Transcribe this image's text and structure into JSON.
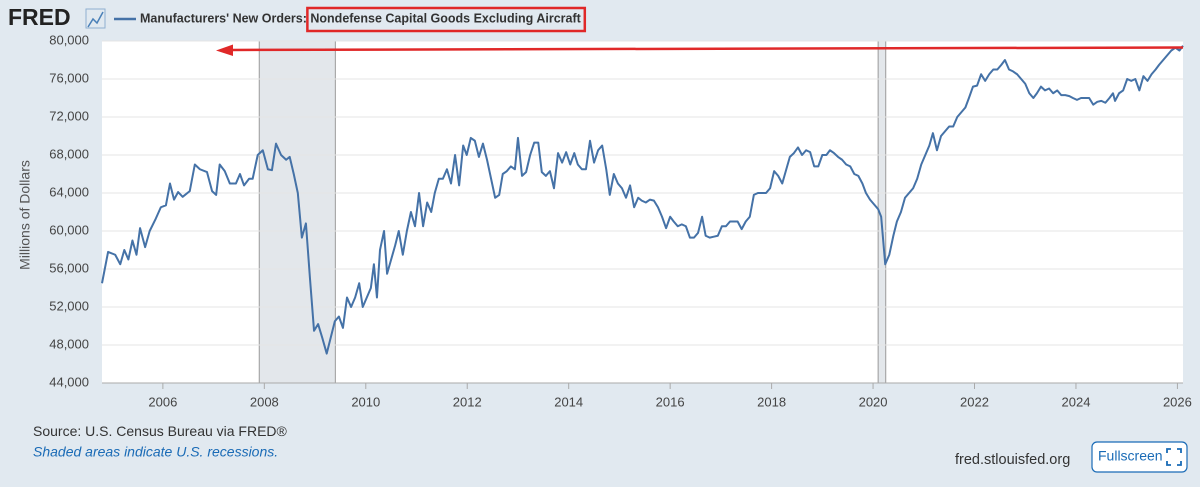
{
  "logo": "FRED",
  "chart_data": {
    "type": "line",
    "ylabel": "Millions of Dollars",
    "xlim": [
      2004.8,
      2026.11
    ],
    "ylim": [
      44000,
      80000
    ],
    "xticks": [
      2006,
      2008,
      2010,
      2012,
      2014,
      2016,
      2018,
      2020,
      2022,
      2024,
      2026
    ],
    "yticks": [
      {
        "value": 44000,
        "label": "44,000"
      },
      {
        "value": 48000,
        "label": "48,000"
      },
      {
        "value": 52000,
        "label": "52,000"
      },
      {
        "value": 56000,
        "label": "56,000"
      },
      {
        "value": 60000,
        "label": "60,000"
      },
      {
        "value": 64000,
        "label": "64,000"
      },
      {
        "value": 68000,
        "label": "68,000"
      },
      {
        "value": 72000,
        "label": "72,000"
      },
      {
        "value": 76000,
        "label": "76,000"
      },
      {
        "value": 80000,
        "label": "80,000"
      }
    ],
    "grid": true,
    "recessions": [
      [
        2007.9,
        2009.4
      ],
      [
        2020.1,
        2020.25
      ]
    ],
    "x": [
      2004.8,
      2004.92,
      2005.06,
      2005.16,
      2005.24,
      2005.32,
      2005.4,
      2005.48,
      2005.55,
      2005.65,
      2005.74,
      2005.86,
      2005.96,
      2006.06,
      2006.14,
      2006.22,
      2006.3,
      2006.39,
      2006.53,
      2006.63,
      2006.73,
      2006.87,
      2006.97,
      2007.05,
      2007.12,
      2007.22,
      2007.32,
      2007.44,
      2007.52,
      2007.6,
      2007.7,
      2007.77,
      2007.87,
      2007.97,
      2008.07,
      2008.15,
      2008.23,
      2008.33,
      2008.43,
      2008.5,
      2008.58,
      2008.66,
      2008.74,
      2008.82,
      2008.9,
      2008.98,
      2009.06,
      2009.14,
      2009.23,
      2009.31,
      2009.39,
      2009.47,
      2009.55,
      2009.63,
      2009.71,
      2009.79,
      2009.87,
      2009.94,
      2010.02,
      2010.1,
      2010.16,
      2010.22,
      2010.28,
      2010.36,
      2010.42,
      2010.5,
      2010.58,
      2010.65,
      2010.73,
      2010.81,
      2010.89,
      2010.97,
      2011.05,
      2011.13,
      2011.21,
      2011.29,
      2011.36,
      2011.44,
      2011.52,
      2011.6,
      2011.68,
      2011.76,
      2011.84,
      2011.92,
      2011.99,
      2012.07,
      2012.15,
      2012.23,
      2012.31,
      2012.39,
      2012.47,
      2012.55,
      2012.63,
      2012.7,
      2012.78,
      2012.86,
      2012.94,
      2013.0,
      2013.08,
      2013.16,
      2013.24,
      2013.32,
      2013.4,
      2013.47,
      2013.55,
      2013.63,
      2013.71,
      2013.79,
      2013.87,
      2013.95,
      2014.03,
      2014.11,
      2014.18,
      2014.26,
      2014.34,
      2014.42,
      2014.5,
      2014.58,
      2014.66,
      2014.74,
      2014.81,
      2014.89,
      2014.97,
      2015.05,
      2015.13,
      2015.21,
      2015.29,
      2015.37,
      2015.44,
      2015.52,
      2015.6,
      2015.68,
      2015.76,
      2015.84,
      2015.92,
      2016.0,
      2016.07,
      2016.15,
      2016.23,
      2016.31,
      2016.39,
      2016.47,
      2016.55,
      2016.63,
      2016.7,
      2016.78,
      2016.86,
      2016.94,
      2017.02,
      2017.1,
      2017.18,
      2017.26,
      2017.33,
      2017.41,
      2017.49,
      2017.57,
      2017.65,
      2017.73,
      2017.81,
      2017.89,
      2017.97,
      2018.05,
      2018.13,
      2018.21,
      2018.29,
      2018.36,
      2018.44,
      2018.52,
      2018.6,
      2018.68,
      2018.76,
      2018.84,
      2018.92,
      2019.0,
      2019.08,
      2019.15,
      2019.23,
      2019.31,
      2019.39,
      2019.47,
      2019.55,
      2019.63,
      2019.71,
      2019.79,
      2019.86,
      2019.94,
      2020.02,
      2020.1,
      2020.16,
      2020.24,
      2020.32,
      2020.4,
      2020.47,
      2020.55,
      2020.63,
      2020.71,
      2020.79,
      2020.87,
      2020.95,
      2021.03,
      2021.11,
      2021.18,
      2021.26,
      2021.34,
      2021.42,
      2021.5,
      2021.58,
      2021.66,
      2021.74,
      2021.82,
      2021.89,
      2021.97,
      2022.05,
      2022.13,
      2022.21,
      2022.29,
      2022.37,
      2022.45,
      2022.53,
      2022.6,
      2022.68,
      2022.76,
      2022.84,
      2022.92,
      2023.0,
      2023.08,
      2023.16,
      2023.23,
      2023.31,
      2023.39,
      2023.47,
      2023.55,
      2023.63,
      2023.71,
      2023.79,
      2023.87,
      2023.94,
      2024.02,
      2024.1,
      2024.18,
      2024.26,
      2024.34,
      2024.42,
      2024.5,
      2024.58,
      2024.66,
      2024.73,
      2024.77,
      2024.85,
      2024.93,
      2025.01,
      2025.09,
      2025.17,
      2025.25,
      2025.33,
      2025.41,
      2025.49,
      2025.57,
      2025.64,
      2025.72,
      2025.8,
      2025.88,
      2025.96,
      2026.04,
      2026.11
    ],
    "series": [
      {
        "name": "Manufacturers' New Orders: Nondefense Capital Goods Excluding Aircraft",
        "color": "#4572a7",
        "values": [
          54500,
          57800,
          57500,
          56500,
          58000,
          57000,
          59000,
          57500,
          60300,
          58300,
          60000,
          61300,
          62500,
          62700,
          65000,
          63300,
          64100,
          63600,
          64200,
          67000,
          66500,
          66200,
          64200,
          63800,
          67000,
          66300,
          65000,
          65000,
          66000,
          64800,
          65500,
          65500,
          68000,
          68500,
          66500,
          66400,
          69200,
          68000,
          67500,
          67800,
          66000,
          64000,
          59300,
          60800,
          55000,
          49500,
          50200,
          48800,
          47100,
          48800,
          50500,
          51000,
          49800,
          53000,
          52000,
          53000,
          54500,
          52000,
          53000,
          54000,
          56500,
          53000,
          58000,
          60000,
          55500,
          57000,
          58500,
          60000,
          57500,
          60000,
          62000,
          60500,
          64000,
          60500,
          63000,
          62000,
          64000,
          65500,
          65500,
          66500,
          65000,
          68000,
          64800,
          69000,
          68000,
          69800,
          69500,
          67800,
          69200,
          67500,
          65500,
          63500,
          63800,
          66000,
          66300,
          66800,
          66500,
          69800,
          65800,
          66200,
          68000,
          69300,
          69300,
          66200,
          65800,
          66300,
          64500,
          68200,
          67200,
          68300,
          67000,
          68200,
          67000,
          66500,
          66500,
          69500,
          67200,
          68500,
          69000,
          66500,
          63800,
          66000,
          65000,
          64500,
          63500,
          64800,
          62500,
          63500,
          63200,
          63000,
          63300,
          63200,
          62500,
          61500,
          60300,
          61500,
          61000,
          60500,
          60700,
          60500,
          59300,
          59300,
          59800,
          61500,
          59500,
          59300,
          59400,
          59500,
          60500,
          60500,
          61000,
          61000,
          61000,
          60200,
          61000,
          61500,
          63800,
          64000,
          64000,
          64000,
          64500,
          66300,
          65800,
          65000,
          66500,
          67800,
          68200,
          68800,
          68000,
          68500,
          68300,
          66800,
          66800,
          68000,
          68000,
          68500,
          68200,
          67800,
          67500,
          67000,
          66800,
          66000,
          65800,
          65000,
          64000,
          63300,
          62800,
          62300,
          61500,
          56500,
          57500,
          59500,
          61000,
          62000,
          63500,
          64000,
          64500,
          65500,
          67000,
          68000,
          69000,
          70300,
          68500,
          70000,
          70500,
          71000,
          71000,
          72000,
          72500,
          73000,
          74000,
          75200,
          75300,
          76500,
          75800,
          76500,
          77000,
          77000,
          77500,
          78000,
          77000,
          76800,
          76500,
          76000,
          75500,
          74500,
          74000,
          74500,
          75200,
          74800,
          75000,
          74500,
          74800,
          74300,
          74300,
          74200,
          74000,
          73800,
          74000,
          74000,
          74000,
          73300,
          73600,
          73700,
          73500,
          74000,
          74500,
          73700,
          74500,
          74800,
          76000,
          75800,
          76000,
          74800,
          76300,
          75800,
          76500,
          77000,
          77500,
          78000,
          78500,
          79000,
          79300,
          79000,
          79500
        ]
      }
    ]
  },
  "footer": {
    "source": "U.S. Census Bureau via FRED®",
    "source_prefix": "Source:",
    "note": "Shaded areas indicate U.S. recessions.",
    "site": "fred.stlouisfed.org",
    "button": "Fullscreen"
  }
}
